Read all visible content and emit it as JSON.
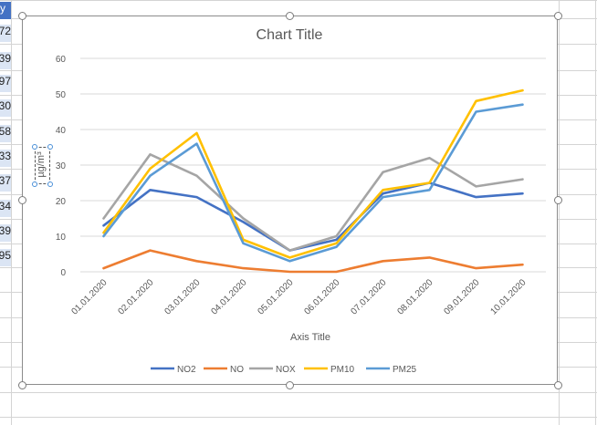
{
  "sheet": {
    "header_fragment": "y",
    "row_fragments": [
      "72",
      "39",
      "97",
      "30",
      "58",
      "33",
      "37",
      "34",
      "39",
      "95"
    ]
  },
  "chart_data": {
    "type": "line",
    "title": "Chart Title",
    "xlabel": "Axis Title",
    "ylabel": "µg/m³",
    "categories": [
      "01.01.2020",
      "02.01.2020",
      "03.01.2020",
      "04.01.2020",
      "05.01.2020",
      "06.01.2020",
      "07.01.2020",
      "08.01.2020",
      "09.01.2020",
      "10.01.2020"
    ],
    "yticks": [
      "0",
      "10",
      "20",
      "30",
      "40",
      "50",
      "60"
    ],
    "ylim": [
      0,
      60
    ],
    "grid": true,
    "legend": "bottom",
    "series": [
      {
        "name": "NO2",
        "color": "#4472c4",
        "values": [
          13,
          23,
          21,
          14,
          6,
          9,
          22,
          25,
          21,
          22
        ]
      },
      {
        "name": "NO",
        "color": "#ed7d31",
        "values": [
          1,
          6,
          3,
          1,
          0,
          0,
          3,
          4,
          1,
          2
        ]
      },
      {
        "name": "NOX",
        "color": "#a5a5a5",
        "values": [
          15,
          33,
          27,
          15,
          6,
          10,
          28,
          32,
          24,
          26
        ]
      },
      {
        "name": "PM10",
        "color": "#ffc000",
        "values": [
          11,
          29,
          39,
          9,
          4,
          8,
          23,
          25,
          48,
          51
        ]
      },
      {
        "name": "PM25",
        "color": "#5b9bd5",
        "values": [
          10,
          27,
          36,
          8,
          3,
          7,
          21,
          23,
          45,
          47
        ]
      }
    ]
  }
}
